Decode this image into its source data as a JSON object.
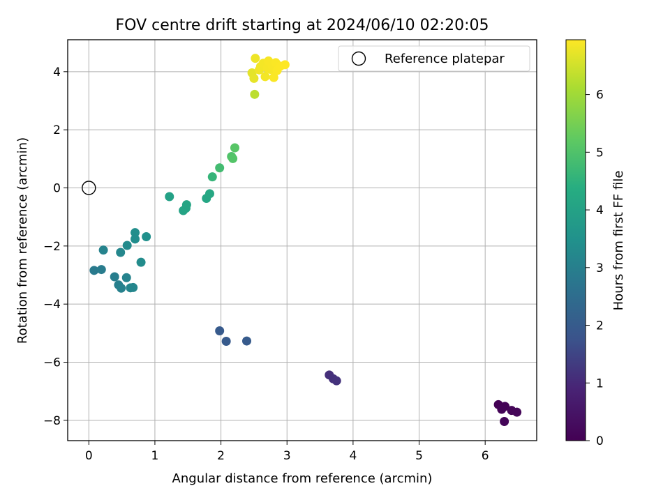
{
  "chart_data": {
    "type": "scatter",
    "title": "FOV centre drift starting at 2024/06/10 02:20:05",
    "xlabel": "Angular distance from reference (arcmin)",
    "ylabel": "Rotation from reference (arcmin)",
    "xlim": [
      -0.32,
      6.78
    ],
    "ylim": [
      -8.7,
      5.1
    ],
    "x_ticks": [
      0,
      1,
      2,
      3,
      4,
      5,
      6
    ],
    "y_ticks": [
      -8,
      -6,
      -4,
      -2,
      0,
      2,
      4
    ],
    "grid": true,
    "legend": {
      "placement": "top-right",
      "entries": [
        "Reference platepar"
      ]
    },
    "reference_point": {
      "name": "Reference platepar",
      "x": 0,
      "y": 0
    },
    "colorbar": {
      "label": "Hours from first FF file",
      "colormap": "viridis",
      "range": [
        0,
        6.95
      ],
      "ticks": [
        0,
        1,
        2,
        3,
        4,
        5,
        6
      ]
    },
    "points": [
      {
        "x": 6.2,
        "y": -7.46,
        "c": 0.02
      },
      {
        "x": 6.3,
        "y": -7.52,
        "c": 0.05
      },
      {
        "x": 6.25,
        "y": -7.62,
        "c": 0.08
      },
      {
        "x": 6.4,
        "y": -7.66,
        "c": 0.12
      },
      {
        "x": 6.48,
        "y": -7.72,
        "c": 0.15
      },
      {
        "x": 6.29,
        "y": -8.04,
        "c": 0.1
      },
      {
        "x": 3.64,
        "y": -6.44,
        "c": 1.1
      },
      {
        "x": 3.7,
        "y": -6.57,
        "c": 1.13
      },
      {
        "x": 3.75,
        "y": -6.64,
        "c": 1.16
      },
      {
        "x": 1.98,
        "y": -4.92,
        "c": 1.95
      },
      {
        "x": 2.08,
        "y": -5.28,
        "c": 1.97
      },
      {
        "x": 2.39,
        "y": -5.27,
        "c": 2.0
      },
      {
        "x": 0.08,
        "y": -2.84,
        "c": 2.85
      },
      {
        "x": 0.19,
        "y": -2.81,
        "c": 2.9
      },
      {
        "x": 0.22,
        "y": -2.14,
        "c": 3.1
      },
      {
        "x": 0.39,
        "y": -3.06,
        "c": 2.95
      },
      {
        "x": 0.45,
        "y": -3.34,
        "c": 3.0
      },
      {
        "x": 0.49,
        "y": -3.45,
        "c": 3.05
      },
      {
        "x": 0.57,
        "y": -3.09,
        "c": 3.1
      },
      {
        "x": 0.63,
        "y": -3.44,
        "c": 3.15
      },
      {
        "x": 0.67,
        "y": -3.43,
        "c": 3.18
      },
      {
        "x": 0.48,
        "y": -2.22,
        "c": 3.2
      },
      {
        "x": 0.58,
        "y": -1.98,
        "c": 3.3
      },
      {
        "x": 0.7,
        "y": -1.54,
        "c": 3.4
      },
      {
        "x": 0.7,
        "y": -1.76,
        "c": 3.38
      },
      {
        "x": 0.87,
        "y": -1.68,
        "c": 3.45
      },
      {
        "x": 0.79,
        "y": -2.56,
        "c": 3.35
      },
      {
        "x": 1.22,
        "y": -0.3,
        "c": 4.0
      },
      {
        "x": 1.43,
        "y": -0.78,
        "c": 4.05
      },
      {
        "x": 1.47,
        "y": -0.7,
        "c": 4.08
      },
      {
        "x": 1.48,
        "y": -0.58,
        "c": 4.1
      },
      {
        "x": 1.78,
        "y": -0.36,
        "c": 4.15
      },
      {
        "x": 1.83,
        "y": -0.2,
        "c": 4.2
      },
      {
        "x": 1.87,
        "y": 0.38,
        "c": 4.6
      },
      {
        "x": 1.98,
        "y": 0.69,
        "c": 4.8
      },
      {
        "x": 2.16,
        "y": 1.08,
        "c": 5.0
      },
      {
        "x": 2.18,
        "y": 1.01,
        "c": 5.05
      },
      {
        "x": 2.21,
        "y": 1.38,
        "c": 5.1
      },
      {
        "x": 2.51,
        "y": 3.22,
        "c": 6.3
      },
      {
        "x": 2.47,
        "y": 3.96,
        "c": 6.7
      },
      {
        "x": 2.5,
        "y": 3.77,
        "c": 6.72
      },
      {
        "x": 2.52,
        "y": 4.46,
        "c": 6.8
      },
      {
        "x": 2.58,
        "y": 4.06,
        "c": 6.82
      },
      {
        "x": 2.6,
        "y": 4.18,
        "c": 6.84
      },
      {
        "x": 2.64,
        "y": 4.29,
        "c": 6.86
      },
      {
        "x": 2.67,
        "y": 3.83,
        "c": 6.85
      },
      {
        "x": 2.7,
        "y": 4.12,
        "c": 6.88
      },
      {
        "x": 2.72,
        "y": 4.37,
        "c": 6.9
      },
      {
        "x": 2.75,
        "y": 4.08,
        "c": 6.88
      },
      {
        "x": 2.78,
        "y": 4.2,
        "c": 6.9
      },
      {
        "x": 2.8,
        "y": 3.8,
        "c": 6.92
      },
      {
        "x": 2.83,
        "y": 4.31,
        "c": 6.92
      },
      {
        "x": 2.85,
        "y": 4.04,
        "c": 6.93
      },
      {
        "x": 2.9,
        "y": 4.19,
        "c": 6.94
      },
      {
        "x": 2.97,
        "y": 4.24,
        "c": 6.95
      }
    ]
  }
}
